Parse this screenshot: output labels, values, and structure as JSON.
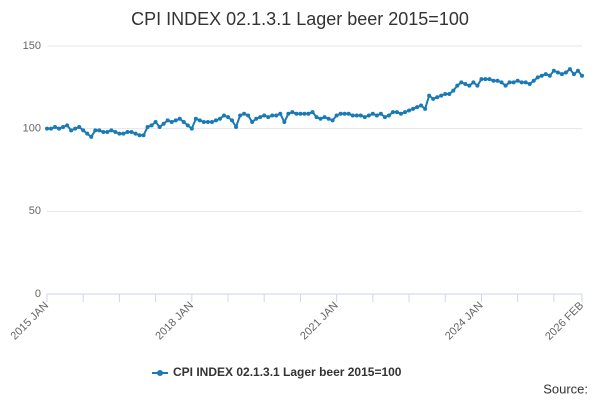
{
  "chart_data": {
    "type": "line",
    "title": "CPI INDEX 02.1.3.1 Lager beer 2015=100",
    "source": "Source:",
    "categories": [
      "2015 JAN",
      null,
      null,
      null,
      null,
      null,
      null,
      null,
      null,
      null,
      null,
      null,
      null,
      null,
      null,
      null,
      null,
      null,
      null,
      null,
      null,
      null,
      null,
      null,
      null,
      null,
      null,
      null,
      null,
      null,
      null,
      null,
      null,
      null,
      null,
      null,
      "2018 JAN",
      null,
      null,
      null,
      null,
      null,
      null,
      null,
      null,
      null,
      null,
      null,
      null,
      null,
      null,
      null,
      null,
      null,
      null,
      null,
      null,
      null,
      null,
      null,
      null,
      null,
      null,
      null,
      null,
      null,
      null,
      null,
      null,
      null,
      null,
      null,
      "2021 JAN",
      null,
      null,
      null,
      null,
      null,
      null,
      null,
      null,
      null,
      null,
      null,
      null,
      null,
      null,
      null,
      null,
      null,
      null,
      null,
      null,
      null,
      null,
      null,
      null,
      null,
      null,
      null,
      null,
      null,
      null,
      null,
      null,
      null,
      null,
      null,
      "2024 JAN",
      null,
      null,
      null,
      null,
      null,
      null,
      null,
      null,
      null,
      null,
      null,
      null,
      null,
      null,
      null,
      null,
      null,
      null,
      null,
      null,
      null,
      null,
      null,
      null,
      "2026 FEB"
    ],
    "series": [
      {
        "name": "CPI INDEX 02.1.3.1 Lager beer 2015=100",
        "color": "#1a7ab5",
        "values": [
          100,
          100,
          101,
          100,
          101,
          102,
          99,
          100,
          101,
          99,
          97,
          95,
          99,
          99,
          98,
          98,
          99,
          98,
          97,
          97,
          98,
          98,
          97,
          96,
          96,
          101,
          102,
          104,
          101,
          103,
          105,
          104,
          105,
          106,
          104,
          102,
          100,
          106,
          105,
          104,
          104,
          104,
          105,
          106,
          108,
          107,
          105,
          101,
          108,
          109,
          108,
          104,
          106,
          107,
          108,
          107,
          108,
          108,
          109,
          104,
          109,
          110,
          109,
          109,
          109,
          109,
          110,
          107,
          106,
          107,
          106,
          105,
          108,
          109,
          109,
          109,
          108,
          108,
          108,
          107,
          108,
          109,
          108,
          109,
          107,
          108,
          110,
          110,
          109,
          110,
          111,
          112,
          113,
          114,
          112,
          120,
          118,
          119,
          120,
          121,
          121,
          123,
          126,
          128,
          127,
          126,
          128,
          126,
          130,
          130,
          130,
          129,
          129,
          128,
          126,
          128,
          128,
          129,
          128,
          128,
          127,
          129,
          131,
          132,
          133,
          132,
          135,
          134,
          133,
          134,
          136,
          133,
          135,
          132
        ]
      }
    ],
    "ylim": [
      0,
      150
    ],
    "yticks": [
      0,
      50,
      100,
      150
    ],
    "grid": true,
    "legend": "bottom"
  }
}
